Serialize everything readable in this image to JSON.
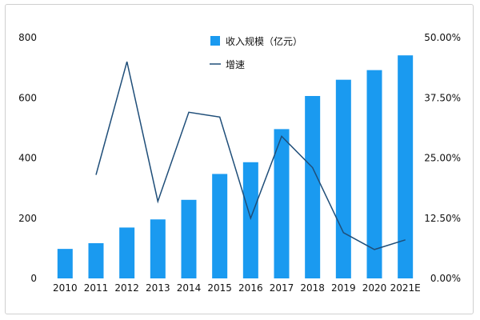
{
  "chart_data": {
    "type": "bar",
    "categories": [
      "2010",
      "2011",
      "2012",
      "2013",
      "2014",
      "2015",
      "2016",
      "2017",
      "2018",
      "2019",
      "2020",
      "2021E"
    ],
    "series": [
      {
        "name": "收入规模（亿元）",
        "type": "bar",
        "axis": "left",
        "color": "#1a9af0",
        "values": [
          98,
          117,
          169,
          196,
          261,
          347,
          386,
          496,
          606,
          660,
          692,
          741
        ]
      },
      {
        "name": "增速",
        "type": "line",
        "axis": "right",
        "color": "#1f4e79",
        "values": [
          null,
          21.5,
          45.0,
          16.0,
          34.5,
          33.5,
          12.5,
          29.5,
          23.0,
          9.5,
          6.0,
          8.0
        ]
      }
    ],
    "y_left": {
      "ylim": [
        0,
        800
      ],
      "ticks": [
        "0",
        "200",
        "400",
        "600",
        "800"
      ],
      "tick_values": [
        0,
        200,
        400,
        600,
        800
      ]
    },
    "y_right": {
      "ylim": [
        0,
        50
      ],
      "ticks": [
        "0.00%",
        "12.50%",
        "25.00%",
        "37.50%",
        "50.00%"
      ],
      "tick_values": [
        0,
        12.5,
        25,
        37.5,
        50
      ]
    },
    "title": "",
    "xlabel": "",
    "ylabel": "",
    "grid": false,
    "legend_position": "top-center"
  }
}
